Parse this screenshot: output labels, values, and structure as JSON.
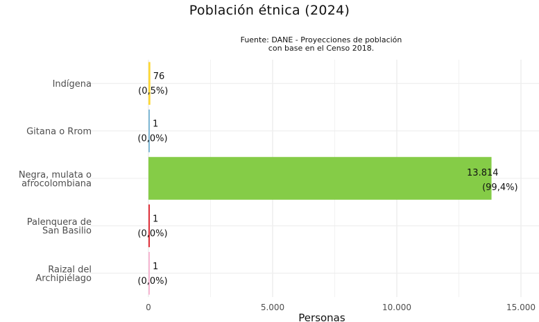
{
  "chart_data": {
    "type": "bar",
    "orientation": "horizontal",
    "title": "Población étnica (2024)",
    "subtitle_lines": [
      "Fuente: DANE - Proyecciones de población",
      "con base en el Censo 2018."
    ],
    "xlabel": "Personas",
    "ylabel": "",
    "xlim": [
      0,
      15000
    ],
    "grid": true,
    "x_ticks": [
      0,
      5000,
      10000,
      15000
    ],
    "x_tick_labels": [
      "0",
      "5.000",
      "10.000",
      "15.000"
    ],
    "categories": [
      {
        "lines": [
          "Indígena"
        ],
        "value": 76,
        "value_label": "76",
        "pct_label": "(0,5%)",
        "color": "#fdd835"
      },
      {
        "lines": [
          "Gitana o Rrom"
        ],
        "value": 1,
        "value_label": "1",
        "pct_label": "(0,0%)",
        "color": "#7fb8d6"
      },
      {
        "lines": [
          "Negra, mulata o",
          "afrocolombiana"
        ],
        "value": 13814,
        "value_label": "13.814",
        "pct_label": "(99,4%)",
        "color": "#85cc47"
      },
      {
        "lines": [
          "Palenquera de",
          "San Basilio"
        ],
        "value": 1,
        "value_label": "1",
        "pct_label": "(0,0%)",
        "color": "#e0303a"
      },
      {
        "lines": [
          "Raizal del",
          "Archipiélago"
        ],
        "value": 1,
        "value_label": "1",
        "pct_label": "(0,0%)",
        "color": "#f7b6d2"
      }
    ]
  }
}
